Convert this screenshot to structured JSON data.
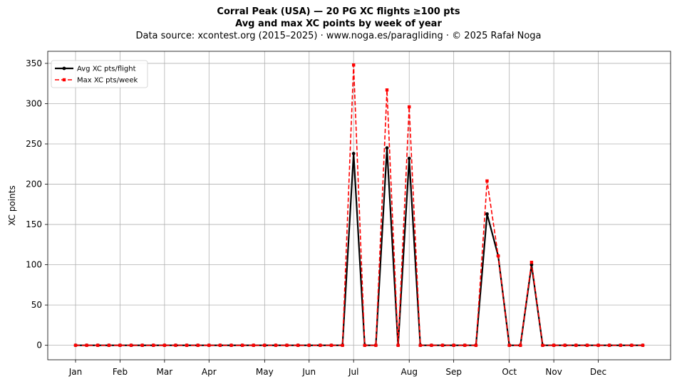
{
  "chart_data": {
    "type": "line",
    "title": "Corral Peak (USA)  —  20 PG XC flights ≥100 pts",
    "subtitle": "Avg and max XC points by week of year",
    "source": "Data source: xcontest.org (2015–2025)  ·  www.noga.es/paragliding  ·  © 2025 Rafał Noga",
    "xlabel": "",
    "ylabel": "XC points",
    "ylim": [
      -18,
      365
    ],
    "yticks": [
      0,
      50,
      100,
      150,
      200,
      250,
      300,
      350
    ],
    "x_ticks": [
      {
        "label": "Jan",
        "week": 1
      },
      {
        "label": "Feb",
        "week": 5
      },
      {
        "label": "Mar",
        "week": 9
      },
      {
        "label": "Apr",
        "week": 13
      },
      {
        "label": "May",
        "week": 18
      },
      {
        "label": "Jun",
        "week": 22
      },
      {
        "label": "Jul",
        "week": 26
      },
      {
        "label": "Aug",
        "week": 31
      },
      {
        "label": "Sep",
        "week": 35
      },
      {
        "label": "Oct",
        "week": 40
      },
      {
        "label": "Nov",
        "week": 44
      },
      {
        "label": "Dec",
        "week": 48
      }
    ],
    "xlim": [
      -1.5,
      54.5
    ],
    "grid": true,
    "legend_position": "top-left",
    "x": [
      1,
      2,
      3,
      4,
      5,
      6,
      7,
      8,
      9,
      10,
      11,
      12,
      13,
      14,
      15,
      16,
      17,
      18,
      19,
      20,
      21,
      22,
      23,
      24,
      25,
      26,
      27,
      28,
      29,
      30,
      31,
      32,
      33,
      34,
      35,
      36,
      37,
      38,
      39,
      40,
      41,
      42,
      43,
      44,
      45,
      46,
      47,
      48,
      49,
      50,
      51,
      52
    ],
    "series": [
      {
        "name": "Avg XC pts/flight",
        "color": "#000000",
        "style": "solid",
        "marker": "circle",
        "values": [
          0,
          0,
          0,
          0,
          0,
          0,
          0,
          0,
          0,
          0,
          0,
          0,
          0,
          0,
          0,
          0,
          0,
          0,
          0,
          0,
          0,
          0,
          0,
          0,
          0,
          238,
          0,
          0,
          245,
          0,
          232,
          0,
          0,
          0,
          0,
          0,
          0,
          163,
          111,
          0,
          0,
          100,
          0,
          0,
          0,
          0,
          0,
          0,
          0,
          0,
          0,
          0
        ]
      },
      {
        "name": "Max XC pts/week",
        "color": "#ff0000",
        "style": "dashed",
        "marker": "square",
        "values": [
          0,
          0,
          0,
          0,
          0,
          0,
          0,
          0,
          0,
          0,
          0,
          0,
          0,
          0,
          0,
          0,
          0,
          0,
          0,
          0,
          0,
          0,
          0,
          0,
          0,
          348,
          0,
          0,
          317,
          0,
          296,
          0,
          0,
          0,
          0,
          0,
          0,
          204,
          111,
          0,
          0,
          103,
          0,
          0,
          0,
          0,
          0,
          0,
          0,
          0,
          0,
          0
        ]
      }
    ]
  }
}
